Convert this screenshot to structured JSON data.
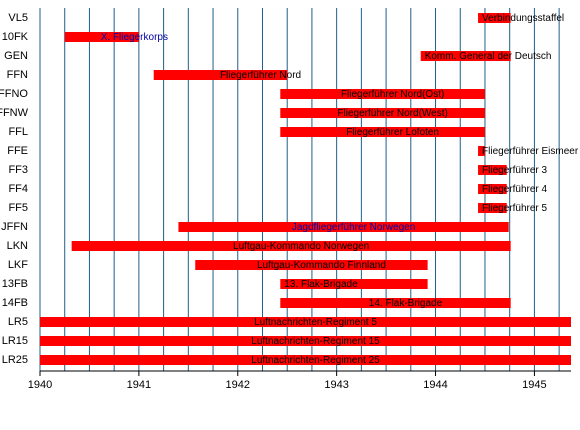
{
  "colors": {
    "bar": "#ff0000",
    "grid": "#1f5f8b",
    "label_default": "#000000",
    "label_highlight": "#0000aa"
  },
  "chart_data": {
    "type": "bar",
    "orientation": "horizontal-timeline",
    "xlim": [
      1940.0,
      1945.37
    ],
    "x_ticks": [
      1940,
      1941,
      1942,
      1943,
      1944,
      1945
    ],
    "grid": "vertical lines every quarter year",
    "rows": [
      {
        "code": "VL5",
        "label": "Verbindungsstaffel",
        "start": 1944.43,
        "end": 1944.76,
        "highlight": false
      },
      {
        "code": "10FK",
        "label": "X. Fliegerkorps",
        "start": 1940.25,
        "end": 1941.0,
        "highlight": true
      },
      {
        "code": "GEN",
        "label": "Komm. General der Deutsch",
        "start": 1943.85,
        "end": 1944.76,
        "highlight": false
      },
      {
        "code": "FFN",
        "label": "Fliegerführer Nord",
        "start": 1941.15,
        "end": 1942.5,
        "highlight": false
      },
      {
        "code": "FFNO",
        "label": "Fliegerführer Nord(Ost)",
        "start": 1942.43,
        "end": 1944.5,
        "highlight": false
      },
      {
        "code": "FFNW",
        "label": "Fliegerführer Nord(West)",
        "start": 1942.43,
        "end": 1944.5,
        "highlight": false
      },
      {
        "code": "FFL",
        "label": "Fliegerführer Lofoten",
        "start": 1942.43,
        "end": 1944.5,
        "highlight": false
      },
      {
        "code": "FFE",
        "label": "Fliegerführer Eismeer",
        "start": 1944.43,
        "end": 1944.5,
        "highlight": false
      },
      {
        "code": "FF3",
        "label": "Fliegerführer 3",
        "start": 1944.43,
        "end": 1944.72,
        "highlight": false
      },
      {
        "code": "FF4",
        "label": "Fliegerführer 4",
        "start": 1944.43,
        "end": 1944.72,
        "highlight": false
      },
      {
        "code": "FF5",
        "label": "Fliegerführer 5",
        "start": 1944.43,
        "end": 1944.72,
        "highlight": false
      },
      {
        "code": "JFFN",
        "label": "Jagdfliegerführer Norwegen",
        "start": 1941.4,
        "end": 1944.74,
        "highlight": true
      },
      {
        "code": "LKN",
        "label": "Luftgau-Kommando Norwegen",
        "start": 1940.32,
        "end": 1944.76,
        "highlight": false
      },
      {
        "code": "LKF",
        "label": "Luftgau-Kommando Finnland",
        "start": 1941.57,
        "end": 1943.92,
        "highlight": false
      },
      {
        "code": "13FB",
        "label": "13. Flak-Brigade",
        "start": 1942.43,
        "end": 1943.92,
        "highlight": false
      },
      {
        "code": "14FB",
        "label": "14. Flak-Brigade",
        "start": 1942.43,
        "end": 1944.76,
        "highlight": false
      },
      {
        "code": "LR5",
        "label": "Luftnachrichten-Regiment 5",
        "start": 1940.0,
        "end": 1945.37,
        "highlight": false
      },
      {
        "code": "LR15",
        "label": "Luftnachrichten-Regiment 15",
        "start": 1940.0,
        "end": 1945.37,
        "highlight": false
      },
      {
        "code": "LR25",
        "label": "Luftnachrichten-Regiment 25",
        "start": 1940.0,
        "end": 1945.37,
        "highlight": false
      }
    ]
  }
}
